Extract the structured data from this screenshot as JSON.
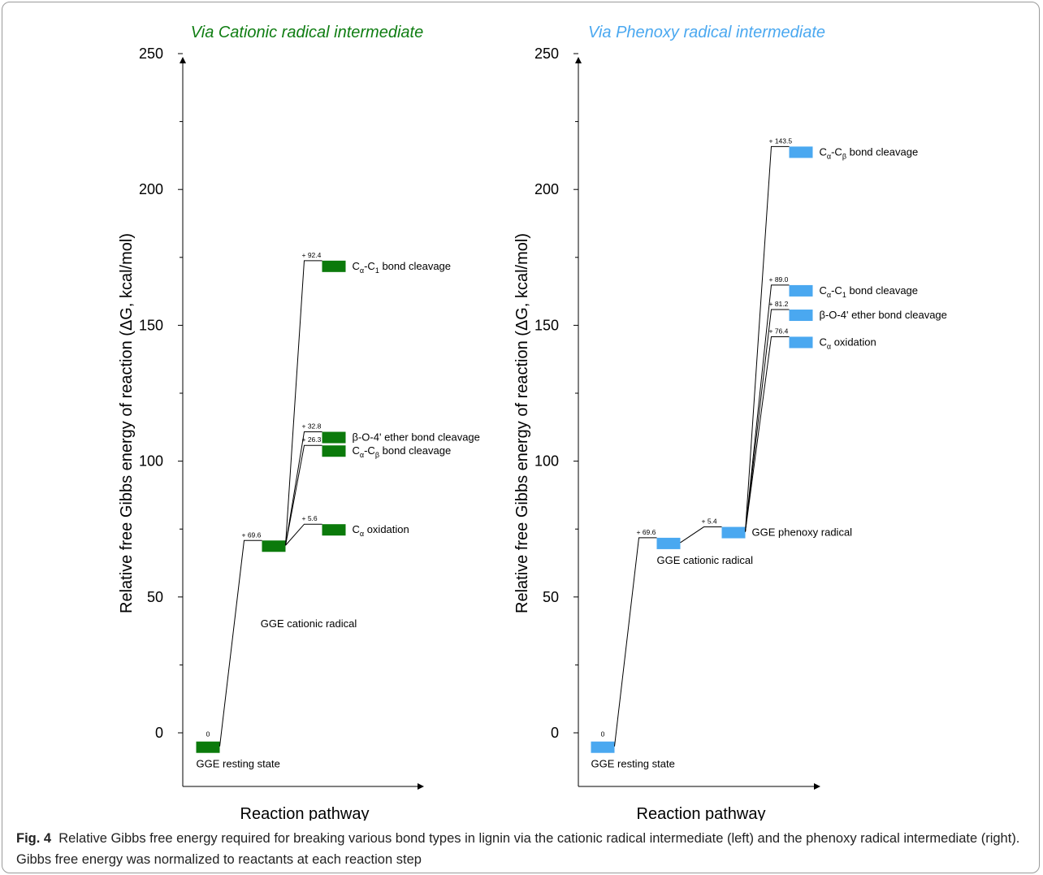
{
  "caption": {
    "label": "Fig. 4",
    "text": "Relative Gibbs free energy required for breaking various bond types in lignin via the cationic radical intermediate (left) and the phenoxy radical intermediate (right). Gibbs free energy was normalized to reactants at each reaction step"
  },
  "chart_data": [
    {
      "type": "energy-profile",
      "title": "Via Cationic radical intermediate",
      "title_color": "#0f7d12",
      "bar_color": "#0b7a0b",
      "ylabel": "Relative free Gibbs energy of reaction (ΔG, kcal/mol)",
      "xlabel": "Reaction pathway",
      "ylim": [
        -20,
        250
      ],
      "yticks": [
        0,
        50,
        100,
        150,
        200,
        250
      ],
      "states": [
        {
          "id": "rest",
          "step": 0,
          "y": -5,
          "delta": "0",
          "label": "GGE resting state",
          "label_pos": "below"
        },
        {
          "id": "cat",
          "step": 1,
          "y": 69,
          "delta": "+ 69.6",
          "label": "GGE cationic radical",
          "label_pos": "far-below"
        },
        {
          "id": "cc1",
          "step": 2,
          "y": 172,
          "delta": "+ 92.4",
          "from": "cat",
          "label": "Cα-C1 bond cleavage",
          "label_parts": [
            "C",
            "α",
            "-C",
            "1",
            " bond cleavage"
          ]
        },
        {
          "id": "bo4",
          "step": 2,
          "y": 109,
          "delta": "+ 32.8",
          "from": "cat",
          "label": "β-O-4' ether bond cleavage",
          "label_parts": [
            "β-O-4' ether bond cleavage"
          ]
        },
        {
          "id": "ccb",
          "step": 2,
          "y": 104,
          "delta": "+ 26.3",
          "from": "cat",
          "label": "Cα-Cβ bond cleavage",
          "label_parts": [
            "C",
            "α",
            "-C",
            "β",
            " bond cleavage"
          ]
        },
        {
          "id": "cox",
          "step": 2,
          "y": 75,
          "delta": "+ 5.6",
          "from": "cat",
          "label": "Cα oxidation",
          "label_parts": [
            "C",
            "α",
            " oxidation"
          ]
        }
      ]
    },
    {
      "type": "energy-profile",
      "title": "Via Phenoxy radical intermediate",
      "title_color": "#4aa8f0",
      "bar_color": "#4aa8f0",
      "ylabel": "Relative free Gibbs energy of reaction (ΔG, kcal/mol)",
      "xlabel": "Reaction pathway",
      "ylim": [
        -20,
        250
      ],
      "yticks": [
        0,
        50,
        100,
        150,
        200,
        250
      ],
      "states": [
        {
          "id": "rest",
          "step": 0,
          "y": -5,
          "delta": "0",
          "label": "GGE resting state",
          "label_pos": "below"
        },
        {
          "id": "cat",
          "step": 1,
          "y": 70,
          "delta": "+ 69.6",
          "label": "GGE cationic radical",
          "label_pos": "below"
        },
        {
          "id": "phx",
          "step": 2,
          "y": 74,
          "delta": "+ 5.4",
          "from": "cat",
          "label": "GGE phenoxy radical",
          "label_pos": "right"
        },
        {
          "id": "ccb",
          "step": 3,
          "y": 214,
          "delta": "+ 143.5",
          "from": "phx",
          "label": "Cα-Cβ bond cleavage",
          "label_parts": [
            "C",
            "α",
            "-C",
            "β",
            " bond cleavage"
          ]
        },
        {
          "id": "cc1",
          "step": 3,
          "y": 163,
          "delta": "+ 89.0",
          "from": "phx",
          "label": "Cα-C1 bond cleavage",
          "label_parts": [
            "C",
            "α",
            "-C",
            "1",
            " bond cleavage"
          ]
        },
        {
          "id": "bo4",
          "step": 3,
          "y": 154,
          "delta": "+ 81.2",
          "from": "phx",
          "label": "β-O-4' ether bond cleavage",
          "label_parts": [
            "β-O-4' ether bond cleavage"
          ]
        },
        {
          "id": "cox",
          "step": 3,
          "y": 144,
          "delta": "+ 76.4",
          "from": "phx",
          "label": "Cα oxidation",
          "label_parts": [
            "C",
            "α",
            " oxidation"
          ]
        }
      ]
    }
  ]
}
